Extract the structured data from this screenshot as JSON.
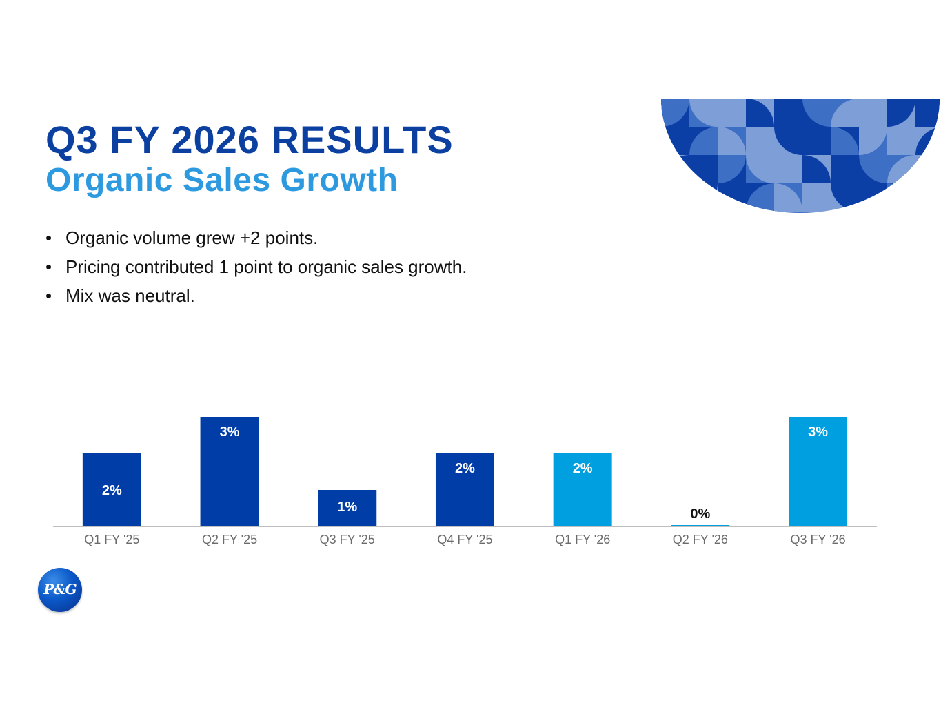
{
  "slide": {
    "title": "Q3 FY 2026 RESULTS",
    "subtitle": "Organic Sales Growth",
    "bullets": [
      "Organic volume grew +2 points.",
      "Pricing contributed 1 point to organic sales growth.",
      "Mix was neutral."
    ],
    "bullet_marker": "•",
    "logo_text": "P&G"
  },
  "colors": {
    "title": "#0b3fa0",
    "subtitle": "#2d9ae0",
    "bar_fy25": "#003da6",
    "bar_fy26": "#009fdf",
    "axis": "#7f7f7f"
  },
  "chart_data": {
    "type": "bar",
    "title": "",
    "xlabel": "",
    "ylabel": "",
    "categories": [
      "Q1 FY '25",
      "Q2 FY '25",
      "Q3 FY '25",
      "Q4 FY '25",
      "Q1 FY '26",
      "Q2 FY '26",
      "Q3 FY '26"
    ],
    "values": [
      2,
      3,
      1,
      2,
      2,
      0,
      3
    ],
    "labels": [
      "2%",
      "3%",
      "1%",
      "2%",
      "2%",
      "0%",
      "3%"
    ],
    "fiscal_year": [
      "FY25",
      "FY25",
      "FY25",
      "FY25",
      "FY26",
      "FY26",
      "FY26"
    ],
    "ylim": [
      0,
      3
    ],
    "grid": false,
    "legend": "none"
  }
}
